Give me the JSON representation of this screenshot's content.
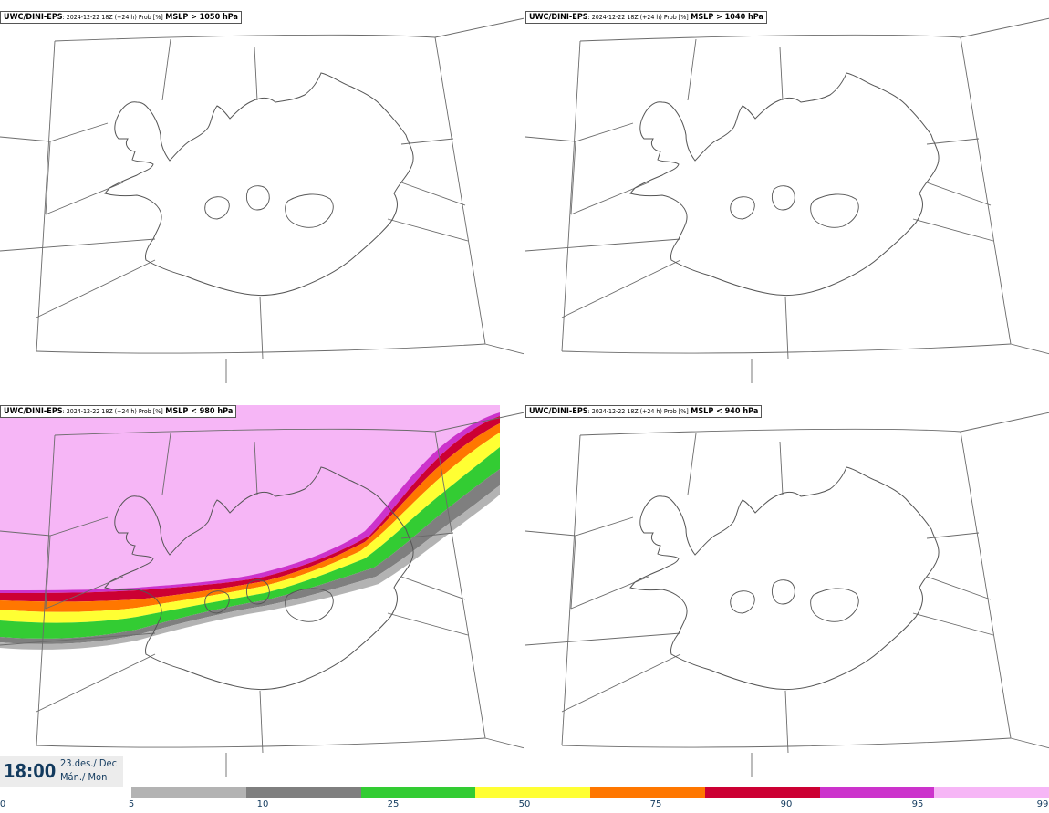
{
  "panels": [
    {
      "model": "UWC/DINI-EPS",
      "meta": ": 2024-12-22 18Z (+24 h) Prob [%]",
      "condition": "MSLP > 1050 hPa"
    },
    {
      "model": "UWC/DINI-EPS",
      "meta": ": 2024-12-22 18Z (+24 h) Prob [%]",
      "condition": "MSLP > 1040 hPa"
    },
    {
      "model": "UWC/DINI-EPS",
      "meta": ": 2024-12-22 18Z (+24 h) Prob [%]",
      "condition": "MSLP < 980 hPa"
    },
    {
      "model": "UWC/DINI-EPS",
      "meta": ": 2024-12-22 18Z (+24 h) Prob [%]",
      "condition": "MSLP < 940 hPa"
    }
  ],
  "valid_time": {
    "time": "18:00",
    "date": "23.des./ Dec",
    "weekday": "Mán./ Mon"
  },
  "colorbar": {
    "ticks": [
      "0",
      "5",
      "10",
      "25",
      "50",
      "75",
      "90",
      "95",
      "99"
    ],
    "colors": [
      "#b3b3b3",
      "#7f7f7f",
      "#33cc33",
      "#ffff33",
      "#ff7700",
      "#cc0033",
      "#cc33cc",
      "#f6b6f6"
    ]
  }
}
